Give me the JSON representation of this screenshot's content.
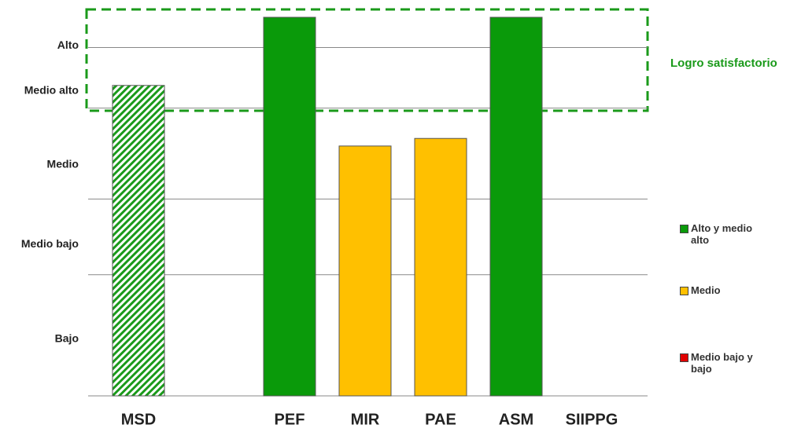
{
  "chart_data": {
    "type": "bar",
    "categories": [
      "MSD",
      null,
      "PEF",
      "MIR",
      "PAE",
      "ASM",
      "SIIPPG"
    ],
    "values": [
      82,
      null,
      100,
      66,
      68,
      100,
      null
    ],
    "colors": [
      "#1a9a1a",
      null,
      "#0a9a0a",
      "#ffc000",
      "#ffc000",
      "#0a9a0a",
      null
    ],
    "hatched": [
      true,
      false,
      false,
      false,
      false,
      false,
      false
    ],
    "ylim": [
      0,
      100
    ],
    "yticks": [
      {
        "value": 15,
        "label": "Bajo"
      },
      {
        "value": 40,
        "label": "Medio bajo"
      },
      {
        "value": 61,
        "label": "Medio"
      },
      {
        "value": 80.5,
        "label": "Medio  alto"
      },
      {
        "value": 92.5,
        "label": "Alto"
      }
    ],
    "grid_lines": [
      0,
      32,
      52,
      76,
      92
    ],
    "annotation": "Logro satisfactorio",
    "legend": [
      {
        "name": "Alto y medio alto",
        "color": "#0a9a0a"
      },
      {
        "name": "Medio",
        "color": "#ffc000"
      },
      {
        "name": "Medio bajo y bajo",
        "color": "#e00000"
      }
    ]
  }
}
